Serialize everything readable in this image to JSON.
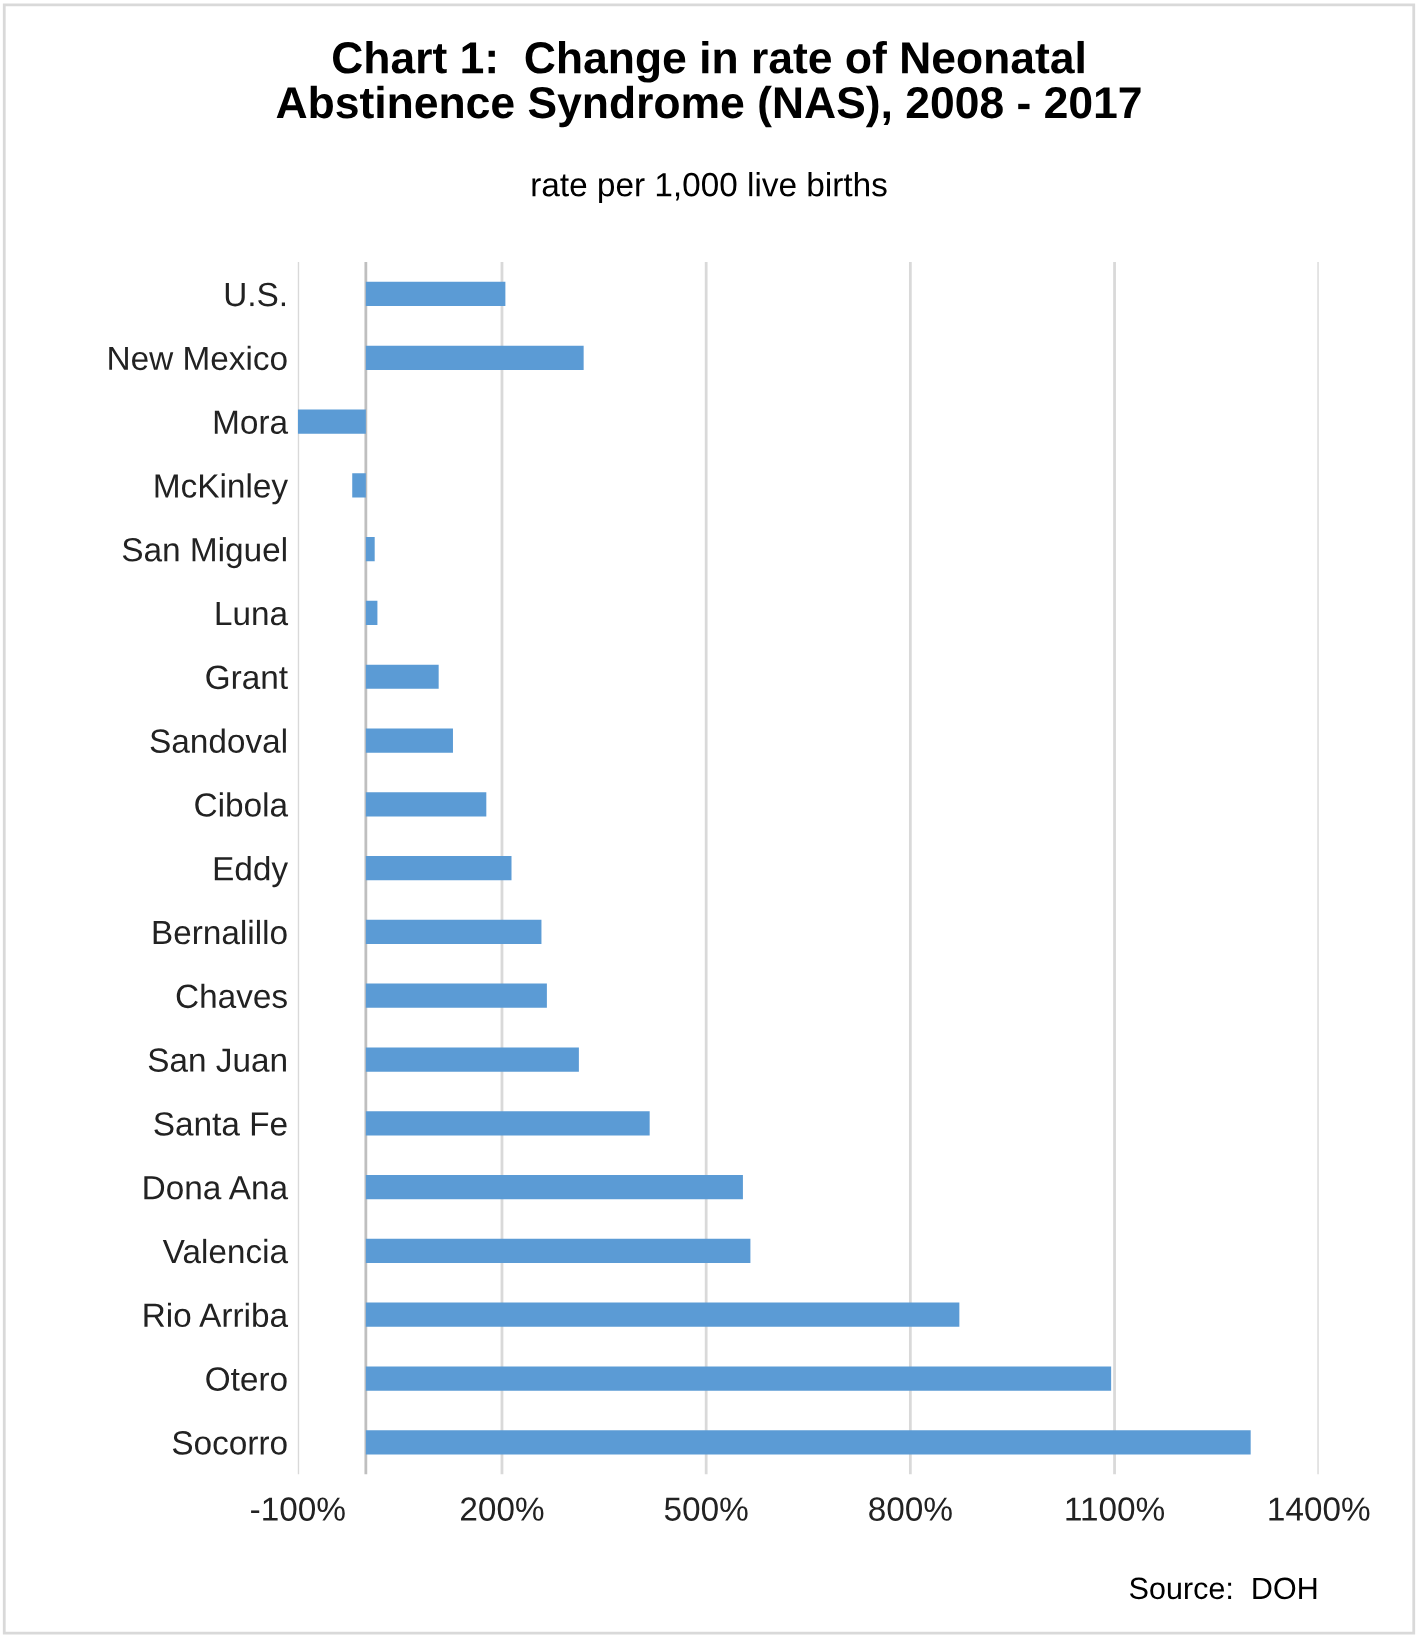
{
  "chart_data": {
    "type": "bar",
    "orientation": "horizontal",
    "title": "Chart 1:  Change in rate of Neonatal\nAbstinence Syndrome (NAS), 2008 - 2017",
    "subtitle": "rate per 1,000 live births",
    "categories": [
      "U.S.",
      "New Mexico",
      "Mora",
      "McKinley",
      "San Miguel",
      "Luna",
      "Grant",
      "Sandoval",
      "Cibola",
      "Eddy",
      "Bernalillo",
      "Chaves",
      "San Juan",
      "Santa Fe",
      "Dona Ana",
      "Valencia",
      "Rio Arriba",
      "Otero",
      "Socorro"
    ],
    "values": [
      205,
      320,
      -100,
      -20,
      13,
      17,
      107,
      128,
      177,
      214,
      258,
      266,
      313,
      417,
      554,
      565,
      872,
      1095,
      1300
    ],
    "color": "#5b9bd5",
    "xlim": [
      -100,
      1400
    ],
    "xticks": [
      {
        "value": -100,
        "label": "-100%"
      },
      {
        "value": 200,
        "label": "200%"
      },
      {
        "value": 500,
        "label": "500%"
      },
      {
        "value": 800,
        "label": "800%"
      },
      {
        "value": 1100,
        "label": "1100%"
      },
      {
        "value": 1400,
        "label": "1400%"
      }
    ],
    "grid": "x",
    "annotations": [
      "Source:  DOH"
    ]
  }
}
